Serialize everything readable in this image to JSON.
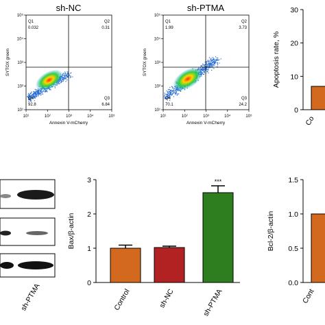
{
  "chart_data": [
    {
      "type": "scatter",
      "title": "sh-NC",
      "xlabel": "Annexin V-mCherry",
      "ylabel": "SYTOX green",
      "x_scale": "log",
      "y_scale": "log",
      "xlim": [
        10,
        100000
      ],
      "ylim": [
        10,
        100000
      ],
      "x_ticks": [
        "10¹",
        "10²",
        "10³",
        "10⁴",
        "10⁵"
      ],
      "y_ticks": [
        "10¹",
        "10²",
        "10³",
        "10⁴",
        "10⁵"
      ],
      "gate": {
        "x": 1000,
        "y": 1000
      },
      "quadrants": [
        {
          "name": "Q1",
          "value": "0.032",
          "position": "top-left"
        },
        {
          "name": "Q2",
          "value": "0.31",
          "position": "top-right"
        },
        {
          "name": "Q3",
          "value": "6.84",
          "position": "bottom-right"
        },
        {
          "name": "Q4",
          "value": "92.8",
          "position": "bottom-left"
        }
      ]
    },
    {
      "type": "scatter",
      "title": "sh-PTMA",
      "xlabel": "Annexin V-mCherry",
      "ylabel": "SYTOX green",
      "x_scale": "log",
      "y_scale": "log",
      "xlim": [
        10,
        100000
      ],
      "ylim": [
        10,
        100000
      ],
      "x_ticks": [
        "10¹",
        "10²",
        "10³",
        "10⁴",
        "10⁵"
      ],
      "y_ticks": [
        "10¹",
        "10²",
        "10³",
        "10⁴",
        "10⁵"
      ],
      "gate": {
        "x": 1000,
        "y": 1000
      },
      "quadrants": [
        {
          "name": "Q1",
          "value": "1.99",
          "position": "top-left"
        },
        {
          "name": "Q2",
          "value": "3.73",
          "position": "top-right"
        },
        {
          "name": "Q3",
          "value": "24.2",
          "position": "bottom-right"
        },
        {
          "name": "Q4",
          "value": "70.1",
          "position": "bottom-left"
        }
      ]
    },
    {
      "type": "bar",
      "ylabel": "Apoptosis rate, %",
      "ylim": [
        0,
        30
      ],
      "y_ticks": [
        "0",
        "10",
        "20",
        "30"
      ],
      "categories": [
        "Co"
      ],
      "values": [
        7
      ],
      "colors": [
        "#d2691e"
      ]
    },
    {
      "type": "bar",
      "ylabel": "Bax/β-actin",
      "ylim": [
        0,
        3
      ],
      "y_ticks": [
        "0",
        "1",
        "2",
        "3"
      ],
      "categories": [
        "Control",
        "sh-NC",
        "sh-PTMA"
      ],
      "values": [
        1.0,
        1.02,
        2.62
      ],
      "errors": [
        0.09,
        0.04,
        0.2
      ],
      "colors": [
        "#d2691e",
        "#b22222",
        "#2e7d1e"
      ],
      "annotations": [
        "",
        "",
        "***"
      ]
    },
    {
      "type": "bar",
      "ylabel": "Bcl-2/β-actin",
      "ylim": [
        0,
        1.5
      ],
      "y_ticks": [
        "0.0",
        "0.5",
        "1.0",
        "1.5"
      ],
      "categories": [
        "Cont"
      ],
      "values": [
        1.0
      ],
      "colors": [
        "#d2691e"
      ]
    }
  ],
  "western_blot": {
    "lane_label": "sh-PTMA"
  }
}
